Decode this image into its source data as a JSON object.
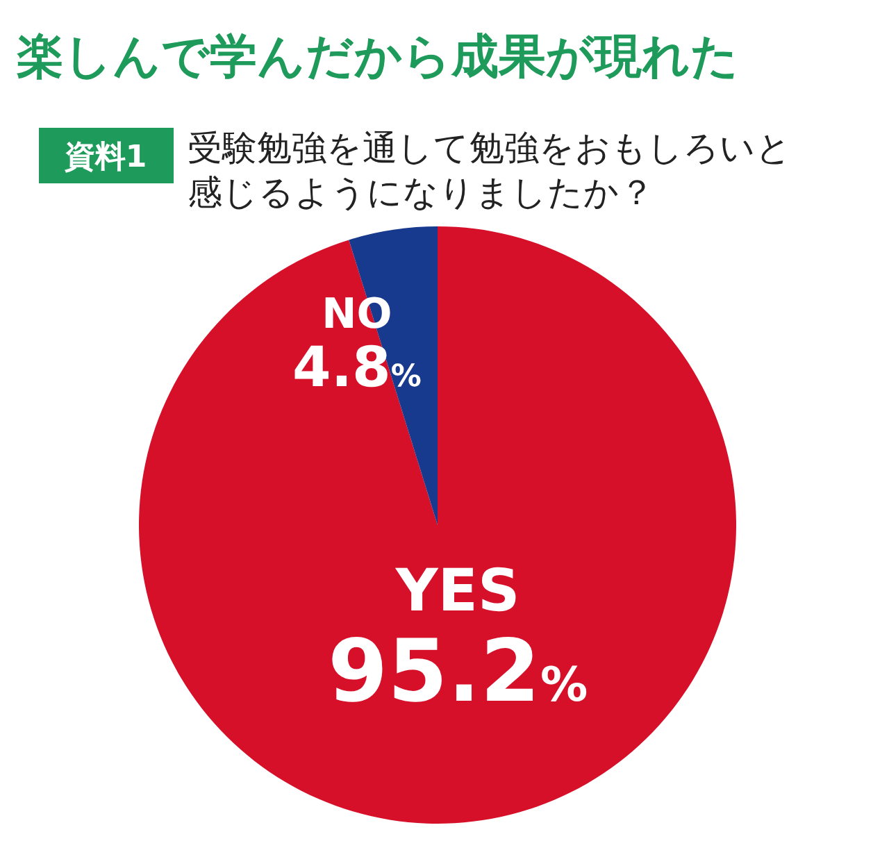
{
  "chart_data": {
    "type": "pie",
    "title": "楽しんで学んだから成果が現れた",
    "subtitle": "受験勉強を通して勉強をおもしろいと感じるようになりましたか？",
    "annotations": [
      "資料1"
    ],
    "categories": [
      "YES",
      "NO"
    ],
    "values": [
      95.2,
      4.8
    ],
    "colors": [
      "#d7102a",
      "#173a8e"
    ],
    "value_labels": [
      "95.2%",
      "4.8%"
    ]
  }
}
